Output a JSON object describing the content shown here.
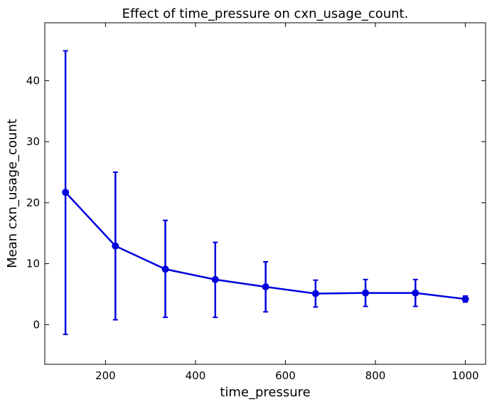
{
  "chart_data": {
    "type": "line",
    "title": "Effect of time_pressure on cxn_usage_count.",
    "xlabel": "time_pressure",
    "ylabel": "Mean cxn_usage_count",
    "xlim": [
      65,
      1045
    ],
    "ylim": [
      -6.5,
      49.5
    ],
    "xticks": [
      200,
      400,
      600,
      800,
      1000
    ],
    "yticks": [
      0,
      10,
      20,
      30,
      40
    ],
    "grid": false,
    "color": "#0000dd",
    "series": [
      {
        "x": [
          111,
          222,
          333,
          444,
          556,
          667,
          778,
          889,
          1000
        ],
        "y": [
          21.7,
          12.9,
          9.1,
          7.4,
          6.2,
          5.1,
          5.2,
          5.2,
          4.2
        ],
        "err_low": [
          -1.6,
          0.8,
          1.2,
          1.2,
          2.1,
          2.9,
          3.0,
          3.0,
          3.7
        ],
        "err_high": [
          44.9,
          25.0,
          17.1,
          13.5,
          10.3,
          7.3,
          7.4,
          7.4,
          4.7
        ]
      }
    ]
  }
}
